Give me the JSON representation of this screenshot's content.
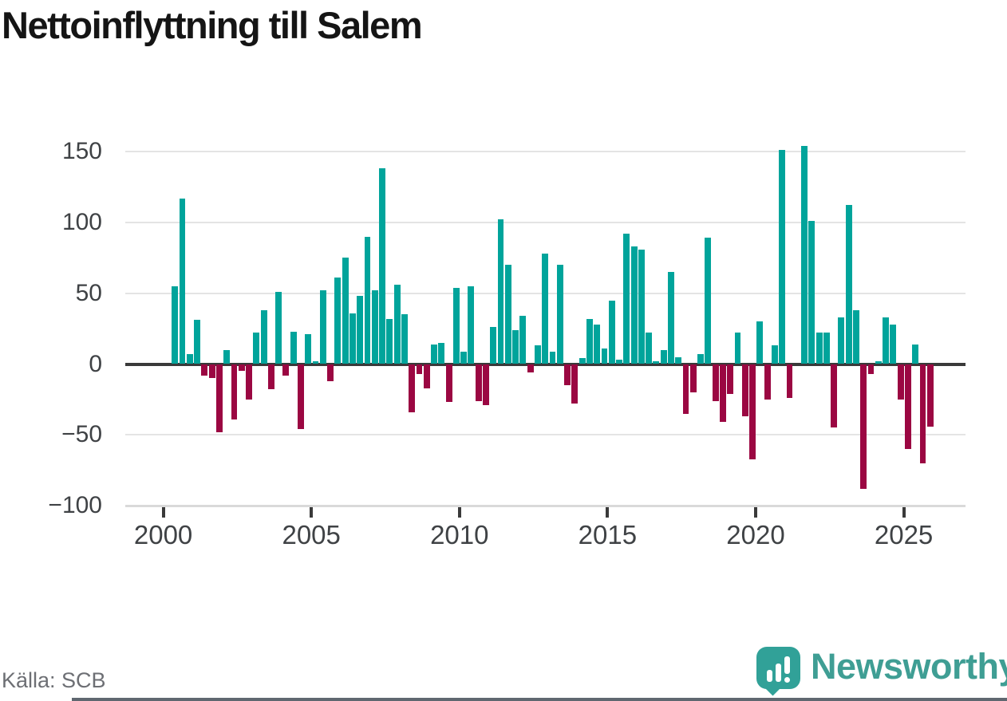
{
  "header": {
    "title": "Nettoinflyttning till Salem"
  },
  "footer": {
    "source": "Källa: SCB",
    "brand": "Newsworthy"
  },
  "colors": {
    "positive": "#00a49b",
    "negative": "#9b0742",
    "brand_teal": "#3f9e94",
    "grid": "#e4e4e4",
    "zero_line": "#3a3a3a",
    "axis_text": "#3f4245"
  },
  "chart_data": {
    "type": "bar",
    "title": "Nettoinflyttning till Salem",
    "frequency": "quarterly",
    "x_start": "2000Q1",
    "x_end": "2025Q4",
    "values": [
      0,
      55,
      117,
      7,
      31,
      -8,
      -10,
      -48,
      10,
      -39,
      -5,
      -25,
      22,
      38,
      -18,
      51,
      -8,
      23,
      -46,
      21,
      2,
      52,
      -12,
      61,
      75,
      36,
      48,
      90,
      52,
      138,
      32,
      56,
      35,
      -34,
      -7,
      -17,
      14,
      15,
      -27,
      54,
      9,
      55,
      -26,
      -29,
      26,
      102,
      70,
      24,
      34,
      -6,
      13,
      78,
      9,
      70,
      -15,
      -28,
      4,
      32,
      28,
      11,
      45,
      3,
      92,
      83,
      81,
      22,
      2,
      10,
      65,
      5,
      -35,
      -20,
      7,
      89,
      -26,
      -41,
      -21,
      22,
      -37,
      -67,
      30,
      -25,
      13,
      151,
      -24,
      0,
      154,
      101,
      22,
      22,
      -45,
      33,
      112,
      38,
      -88,
      -7,
      2,
      33,
      28,
      -25,
      -60,
      14,
      -70,
      -44
    ],
    "x_ticks": [
      2000,
      2005,
      2010,
      2015,
      2020,
      2025
    ],
    "x_tick_labels": [
      "2000",
      "2005",
      "2010",
      "2015",
      "2020",
      "2025"
    ],
    "y_ticks": [
      150,
      100,
      50,
      0,
      -50,
      -100
    ],
    "y_tick_labels": [
      "150",
      "100",
      "50",
      "0",
      "−50",
      "−100"
    ],
    "ylim": [
      -100,
      160
    ],
    "grid": "horizontal",
    "legend": "none"
  }
}
